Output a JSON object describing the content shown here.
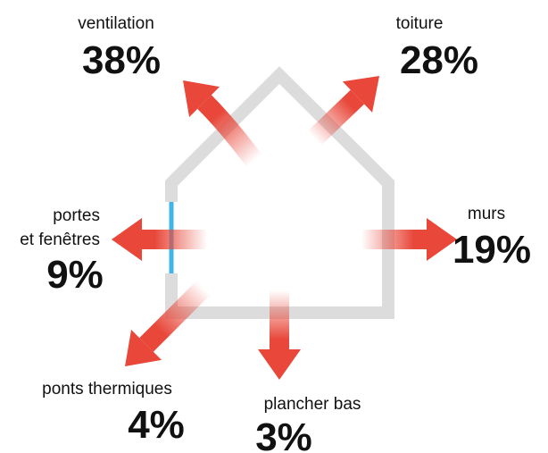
{
  "items": [
    {
      "label": "ventilation",
      "value": "38%"
    },
    {
      "label": "toiture",
      "value": "28%"
    },
    {
      "label": "murs",
      "value": "19%"
    },
    {
      "label": "portes\net fenêtres",
      "value": "9%"
    },
    {
      "label": "ponts thermiques",
      "value": "4%"
    },
    {
      "label": "plancher bas",
      "value": "3%"
    }
  ]
}
